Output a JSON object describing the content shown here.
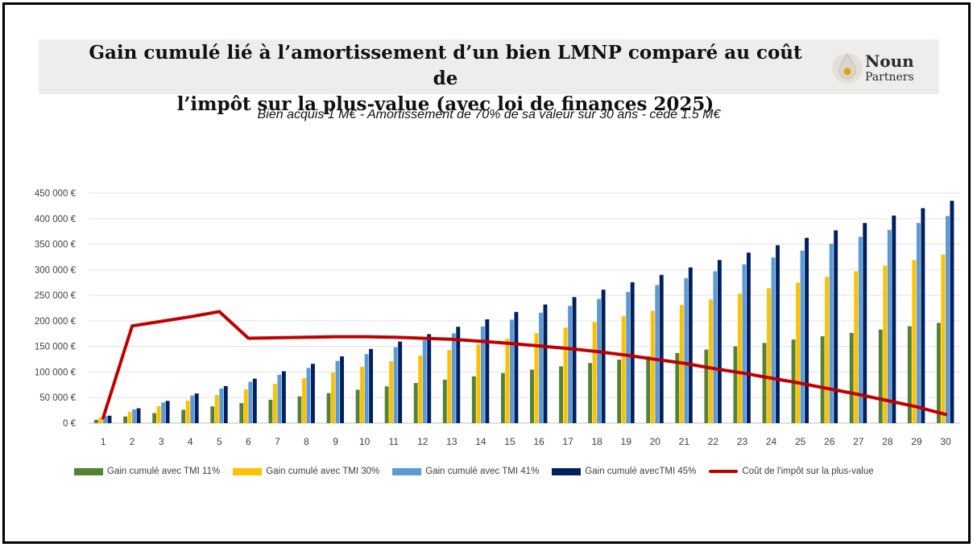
{
  "title_line1": "Gain cumulé lié à l’amortissement d’un bien LMNP comparé au coût de",
  "title_line2": "l’impôt sur la plus-value (avec loi de finances 2025)",
  "subtitle": "Bien acquis 1 M€  - Amortissement de 70% de sa valeur sur 30 ans - cédé 1.5 M€",
  "logo": {
    "line1": "Noun",
    "line2": "Partners"
  },
  "chart_data": {
    "type": "bar",
    "title": "Gain cumulé lié à l’amortissement d’un bien LMNP comparé au coût de l’impôt sur la plus-value (avec loi de finances 2025)",
    "subtitle": "Bien acquis 1 M€  - Amortissement de 70% de sa valeur sur 30 ans - cédé 1.5 M€",
    "xlabel": "",
    "ylabel": "",
    "ylim": [
      0,
      450000
    ],
    "yticks": [
      0,
      50000,
      100000,
      150000,
      200000,
      250000,
      300000,
      350000,
      400000,
      450000
    ],
    "ytick_labels": [
      "0 €",
      "50 000 €",
      "100 000 €",
      "150 000 €",
      "200 000 €",
      "250 000 €",
      "300 000 €",
      "350 000 €",
      "400 000 €",
      "450 000 €"
    ],
    "grid": true,
    "legend_position": "bottom",
    "categories": [
      "1",
      "2",
      "3",
      "4",
      "5",
      "6",
      "7",
      "8",
      "9",
      "10",
      "11",
      "12",
      "13",
      "14",
      "15",
      "16",
      "17",
      "18",
      "19",
      "20",
      "21",
      "22",
      "23",
      "24",
      "25",
      "26",
      "27",
      "28",
      "29",
      "30"
    ],
    "series": [
      {
        "name": "Gain cumulé avec TMI 11%",
        "type": "bar",
        "color": "#548235",
        "values": [
          6500,
          13000,
          19600,
          26100,
          32700,
          39200,
          45700,
          52300,
          58800,
          65300,
          71900,
          78400,
          85000,
          91500,
          98000,
          104600,
          111100,
          117600,
          124200,
          130700,
          137200,
          143800,
          150300,
          156900,
          163400,
          169900,
          176500,
          183000,
          189500,
          196100
        ]
      },
      {
        "name": "Gain cumulé avec TMI 30%",
        "type": "bar",
        "color": "#ffc000",
        "values": [
          11000,
          22000,
          33000,
          44000,
          55000,
          66000,
          77000,
          88000,
          99000,
          110000,
          121000,
          132000,
          143000,
          154000,
          165000,
          176000,
          187000,
          198000,
          209000,
          220000,
          231000,
          242000,
          253000,
          264000,
          275000,
          286000,
          297000,
          308000,
          319000,
          330000
        ]
      },
      {
        "name": "Gain cumulé avec TMI 41%",
        "type": "bar",
        "color": "#5b9bd5",
        "values": [
          13500,
          27000,
          40500,
          54000,
          67500,
          81000,
          94500,
          108000,
          121500,
          135000,
          148500,
          162000,
          175500,
          189000,
          202500,
          216000,
          229500,
          243000,
          256500,
          270000,
          283500,
          297000,
          310500,
          324000,
          337500,
          351000,
          364500,
          378000,
          391500,
          405000
        ]
      },
      {
        "name": "Gain cumulé avecTMI 45%",
        "type": "bar",
        "color": "#002060",
        "values": [
          14500,
          29000,
          43500,
          58000,
          72500,
          87000,
          101500,
          116000,
          130500,
          145000,
          159500,
          174000,
          188500,
          203000,
          217500,
          232000,
          246500,
          261000,
          275500,
          290000,
          304500,
          319000,
          333500,
          348000,
          362500,
          377000,
          391500,
          406000,
          420500,
          435000
        ]
      },
      {
        "name": "Coût de l'impôt sur la plus-value",
        "type": "line",
        "color": "#c00000",
        "values": [
          10000,
          190000,
          199000,
          208000,
          218000,
          166000,
          167000,
          168000,
          169000,
          169000,
          168000,
          166000,
          164000,
          160000,
          156000,
          151000,
          146000,
          140000,
          133000,
          125000,
          117000,
          107000,
          98000,
          88000,
          78000,
          67000,
          56000,
          44000,
          32000,
          17000
        ]
      }
    ]
  }
}
